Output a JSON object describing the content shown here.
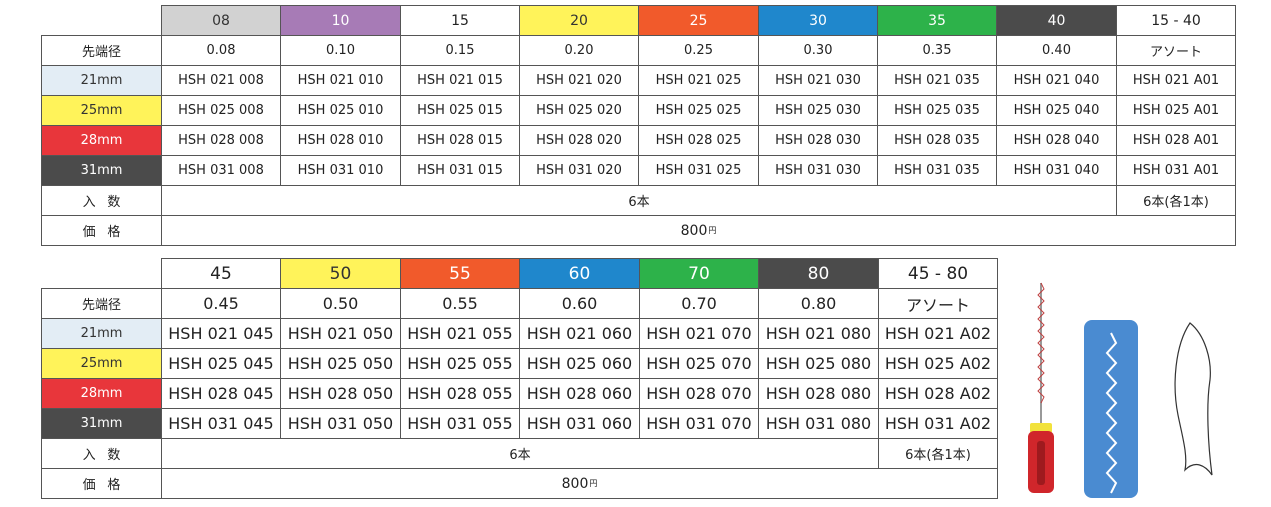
{
  "tables": [
    {
      "headers": [
        {
          "label": "08",
          "color": "#d2d2d2",
          "text_color": "#333333"
        },
        {
          "label": "10",
          "color": "#a77bb6",
          "text_color": "#ffffff"
        },
        {
          "label": "15",
          "color": "#ffffff",
          "text_color": "#222222"
        },
        {
          "label": "20",
          "color": "#fff35a",
          "text_color": "#333333"
        },
        {
          "label": "25",
          "color": "#f15a2b",
          "text_color": "#ffffff"
        },
        {
          "label": "30",
          "color": "#1f87cc",
          "text_color": "#ffffff"
        },
        {
          "label": "35",
          "color": "#2db24a",
          "text_color": "#ffffff"
        },
        {
          "label": "40",
          "color": "#4b4b4b",
          "text_color": "#ffffff"
        },
        {
          "label": "15 - 40",
          "color": "#ffffff",
          "text_color": "#222222"
        }
      ],
      "rows": [
        {
          "label": "先端径",
          "color": "#ffffff",
          "text_color": "#222222",
          "cells": [
            "0.08",
            "0.10",
            "0.15",
            "0.20",
            "0.25",
            "0.30",
            "0.35",
            "0.40",
            "アソート"
          ]
        },
        {
          "label": "21mm",
          "color": "#e3edf5",
          "text_color": "#333333",
          "cells": [
            "HSH 021 008",
            "HSH 021 010",
            "HSH 021 015",
            "HSH 021 020",
            "HSH 021 025",
            "HSH 021 030",
            "HSH 021 035",
            "HSH 021 040",
            "HSH 021 A01"
          ]
        },
        {
          "label": "25mm",
          "color": "#fff35a",
          "text_color": "#333333",
          "cells": [
            "HSH 025 008",
            "HSH 025 010",
            "HSH 025 015",
            "HSH 025 020",
            "HSH 025 025",
            "HSH 025 030",
            "HSH 025 035",
            "HSH 025 040",
            "HSH 025 A01"
          ]
        },
        {
          "label": "28mm",
          "color": "#e8363b",
          "text_color": "#ffffff",
          "cells": [
            "HSH 028 008",
            "HSH 028 010",
            "HSH 028 015",
            "HSH 028 020",
            "HSH 028 025",
            "HSH 028 030",
            "HSH 028 035",
            "HSH 028 040",
            "HSH 028 A01"
          ]
        },
        {
          "label": "31mm",
          "color": "#4b4b4b",
          "text_color": "#ffffff",
          "cells": [
            "HSH 031 008",
            "HSH 031 010",
            "HSH 031 015",
            "HSH 031 020",
            "HSH 031 025",
            "HSH 031 030",
            "HSH 031 035",
            "HSH 031 040",
            "HSH 031 A01"
          ]
        }
      ],
      "quantity": {
        "label": "入数",
        "main": "6本",
        "assort": "6本(各1本)"
      },
      "price": {
        "label": "価格",
        "value": "800",
        "unit": "円"
      }
    },
    {
      "headers": [
        {
          "label": "45",
          "color": "#ffffff",
          "text_color": "#222222"
        },
        {
          "label": "50",
          "color": "#fff35a",
          "text_color": "#333333"
        },
        {
          "label": "55",
          "color": "#f15a2b",
          "text_color": "#ffffff"
        },
        {
          "label": "60",
          "color": "#1f87cc",
          "text_color": "#ffffff"
        },
        {
          "label": "70",
          "color": "#2db24a",
          "text_color": "#ffffff"
        },
        {
          "label": "80",
          "color": "#4b4b4b",
          "text_color": "#ffffff"
        },
        {
          "label": "45 - 80",
          "color": "#ffffff",
          "text_color": "#222222"
        }
      ],
      "rows": [
        {
          "label": "先端径",
          "color": "#ffffff",
          "text_color": "#222222",
          "cells": [
            "0.45",
            "0.50",
            "0.55",
            "0.60",
            "0.70",
            "0.80",
            "アソート"
          ]
        },
        {
          "label": "21mm",
          "color": "#e3edf5",
          "text_color": "#333333",
          "cells": [
            "HSH 021 045",
            "HSH 021 050",
            "HSH 021 055",
            "HSH 021 060",
            "HSH 021 070",
            "HSH 021 080",
            "HSH 021 A02"
          ]
        },
        {
          "label": "25mm",
          "color": "#fff35a",
          "text_color": "#333333",
          "cells": [
            "HSH 025 045",
            "HSH 025 050",
            "HSH 025 055",
            "HSH 025 060",
            "HSH 025 070",
            "HSH 025 080",
            "HSH 025 A02"
          ]
        },
        {
          "label": "28mm",
          "color": "#e8363b",
          "text_color": "#ffffff",
          "cells": [
            "HSH 028 045",
            "HSH 028 050",
            "HSH 028 055",
            "HSH 028 060",
            "HSH 028 070",
            "HSH 028 080",
            "HSH 028 A02"
          ]
        },
        {
          "label": "31mm",
          "color": "#4b4b4b",
          "text_color": "#ffffff",
          "cells": [
            "HSH 031 045",
            "HSH 031 050",
            "HSH 031 055",
            "HSH 031 060",
            "HSH 031 070",
            "HSH 031 080",
            "HSH 031 A02"
          ]
        }
      ],
      "quantity": {
        "label": "入数",
        "main": "6本",
        "assort": "6本(各1本)"
      },
      "price": {
        "label": "価格",
        "value": "800",
        "unit": "円"
      }
    }
  ]
}
